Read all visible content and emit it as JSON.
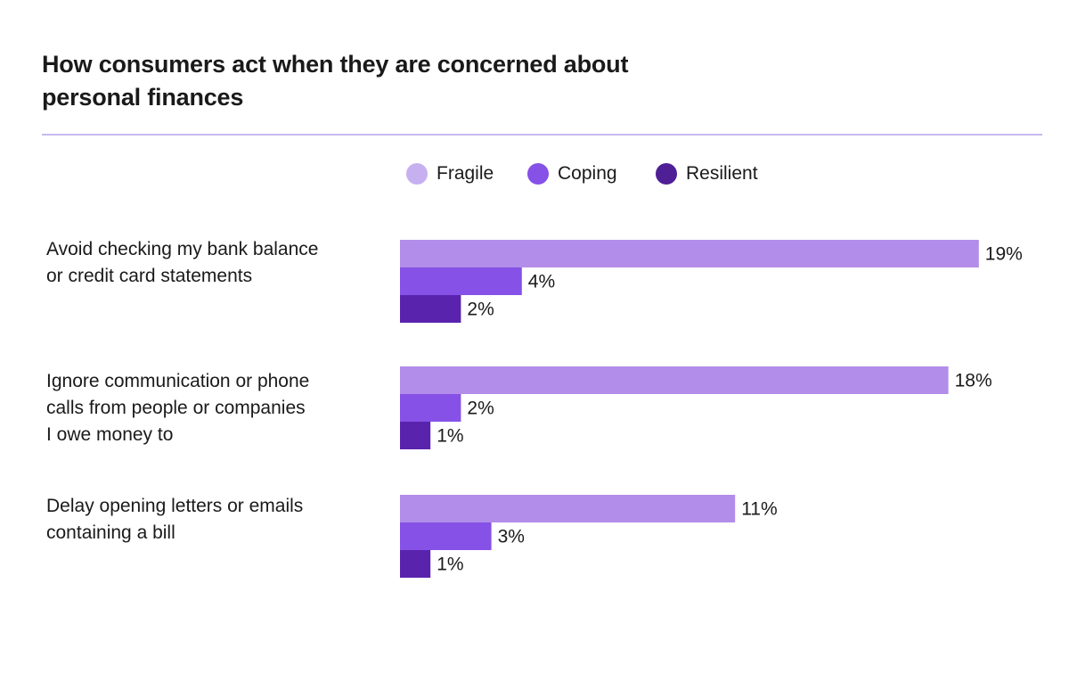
{
  "title": {
    "line1": "How consumers act when they are concerned about",
    "line2": "personal finances"
  },
  "colors": {
    "rule": "#c7b8ee",
    "Fragile": "#b28de9",
    "Coping": "#8551e6",
    "Resilient": "#5a23ad"
  },
  "legend": [
    {
      "name": "Fragile",
      "color": "#c7b0f0"
    },
    {
      "name": "Coping",
      "color": "#8551e6"
    },
    {
      "name": "Resilient",
      "color": "#4f1f96"
    }
  ],
  "chart_data": {
    "type": "bar",
    "orientation": "horizontal",
    "title": "How consumers act when they are concerned about personal finances",
    "categories": [
      [
        "Avoid checking my bank balance",
        "or credit card statements"
      ],
      [
        "Ignore communication or phone",
        "calls from people or companies",
        "I owe money to"
      ],
      [
        "Delay opening letters or emails",
        "containing a bill"
      ]
    ],
    "series": [
      {
        "name": "Fragile",
        "values": [
          19,
          18,
          11
        ],
        "labels": [
          "19%",
          "18%",
          "11%"
        ]
      },
      {
        "name": "Coping",
        "values": [
          4,
          2,
          3
        ],
        "labels": [
          "4%",
          "2%",
          "3%"
        ]
      },
      {
        "name": "Resilient",
        "values": [
          2,
          1,
          1
        ],
        "labels": [
          "2%",
          "1%",
          "1%"
        ]
      }
    ],
    "unit": "%",
    "grid": false,
    "legend_position": "top-center"
  }
}
